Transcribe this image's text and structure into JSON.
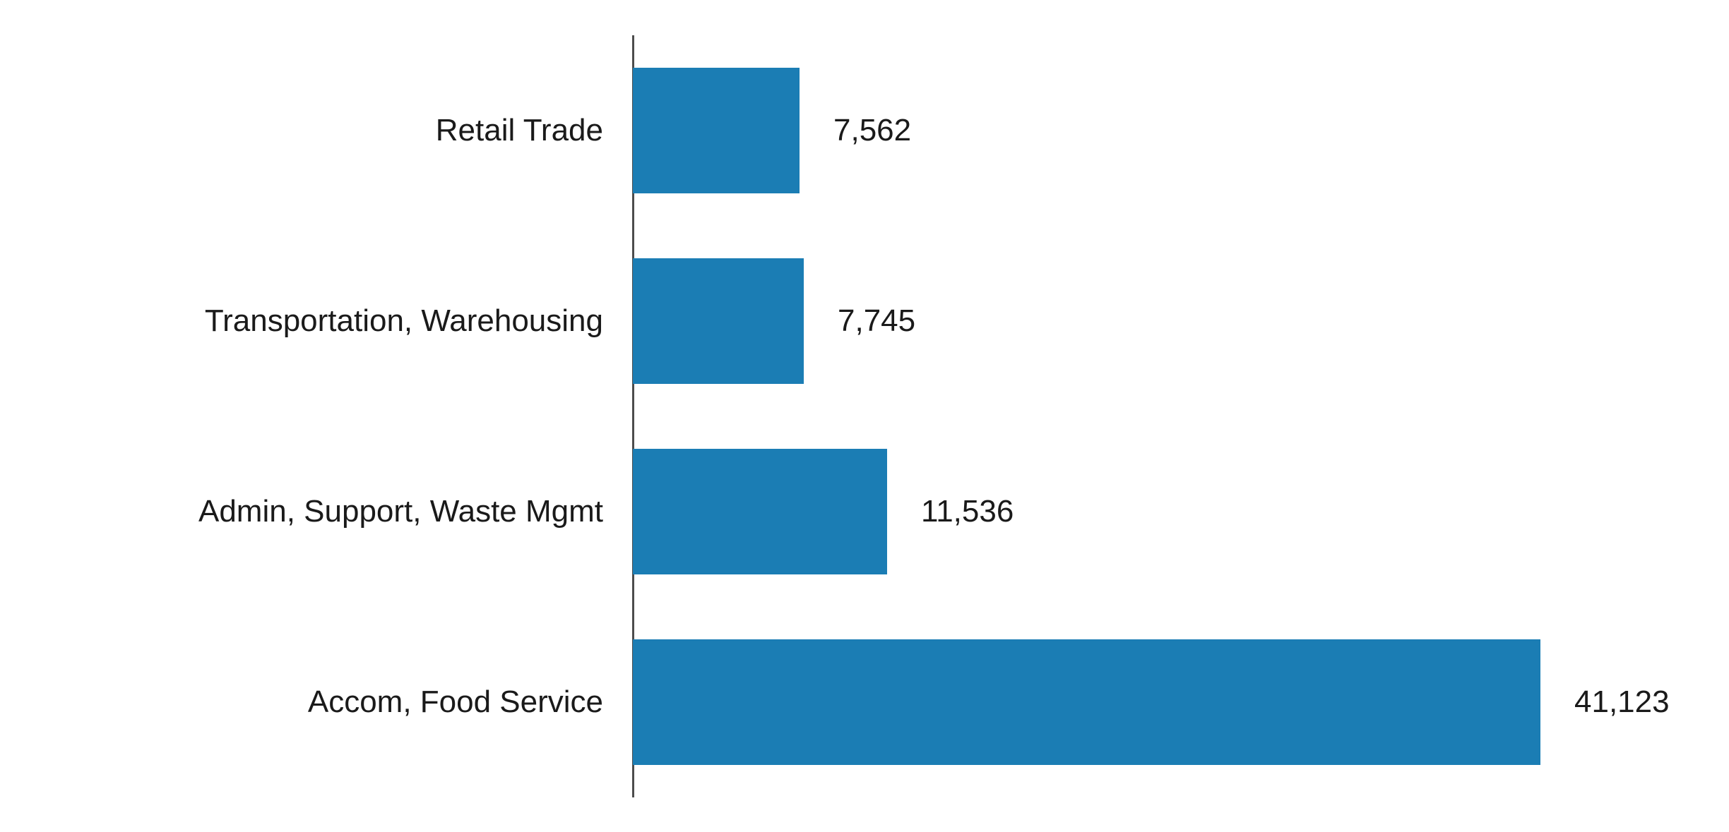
{
  "chart_data": {
    "type": "bar",
    "orientation": "horizontal",
    "title": "",
    "xlabel": "",
    "ylabel": "",
    "categories": [
      "Retail Trade",
      "Transportation, Warehousing",
      "Admin, Support, Waste Mgmt",
      "Accom, Food Service"
    ],
    "values": [
      7562,
      7745,
      11536,
      41123
    ],
    "value_labels": [
      "7,562",
      "7,745",
      "11,536",
      "41,123"
    ],
    "xlim": [
      0,
      41123
    ],
    "grid": false,
    "legend": false,
    "tick_labels_visible": false,
    "colors": {
      "bar": "#1b7db4",
      "axis_line": "#4d4d4d",
      "text": "#1a1a1a",
      "background": "#ffffff"
    }
  }
}
